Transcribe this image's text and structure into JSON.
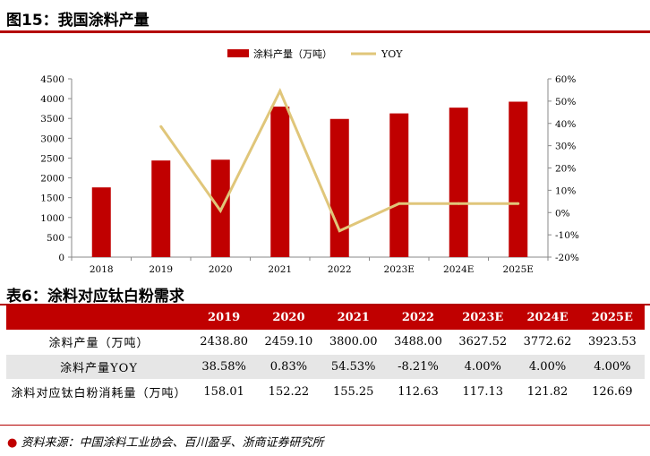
{
  "figure_title": "图15：我国涂料产量",
  "table_title": "表6：涂料对应钛白粉需求",
  "source": "资料来源：中国涂料工业协会、百川盈孚、浙商证券研究所",
  "colors": {
    "bar": "#c00000",
    "line": "#e0c67a",
    "accent": "#b40000"
  },
  "chart_data": {
    "type": "bar",
    "categories": [
      "2018",
      "2019",
      "2020",
      "2021",
      "2022",
      "2023E",
      "2024E",
      "2025E"
    ],
    "series": [
      {
        "name": "涂料产量（万吨）",
        "type": "bar",
        "axis": "left",
        "values": [
          1760,
          2438.8,
          2459.1,
          3800.0,
          3488.0,
          3627.52,
          3772.62,
          3923.53
        ]
      },
      {
        "name": "YOY",
        "type": "line",
        "axis": "right",
        "values": [
          null,
          38.58,
          0.83,
          54.53,
          -8.21,
          4.0,
          4.0,
          4.0
        ]
      }
    ],
    "ylim_left": [
      0,
      4500
    ],
    "ylim_right": [
      -20,
      60
    ],
    "yticks_left": [
      "0",
      "500",
      "1000",
      "1500",
      "2000",
      "2500",
      "3000",
      "3500",
      "4000",
      "4500"
    ],
    "yticks_right": [
      "-20%",
      "-10%",
      "0%",
      "10%",
      "20%",
      "30%",
      "40%",
      "50%",
      "60%"
    ],
    "legend_position": "top-center",
    "grid": false
  },
  "table": {
    "headers": [
      "",
      "2019",
      "2020",
      "2021",
      "2022",
      "2023E",
      "2024E",
      "2025E"
    ],
    "rows": [
      {
        "label": "涂料产量（万吨）",
        "cells": [
          "2438.80",
          "2459.10",
          "3800.00",
          "3488.00",
          "3627.52",
          "3772.62",
          "3923.53"
        ]
      },
      {
        "label": "涂料产量YOY",
        "cells": [
          "38.58%",
          "0.83%",
          "54.53%",
          "-8.21%",
          "4.00%",
          "4.00%",
          "4.00%"
        ]
      },
      {
        "label": "涂料对应钛白粉消耗量（万吨）",
        "cells": [
          "158.01",
          "152.22",
          "155.25",
          "112.63",
          "117.13",
          "121.82",
          "126.69"
        ]
      }
    ]
  }
}
